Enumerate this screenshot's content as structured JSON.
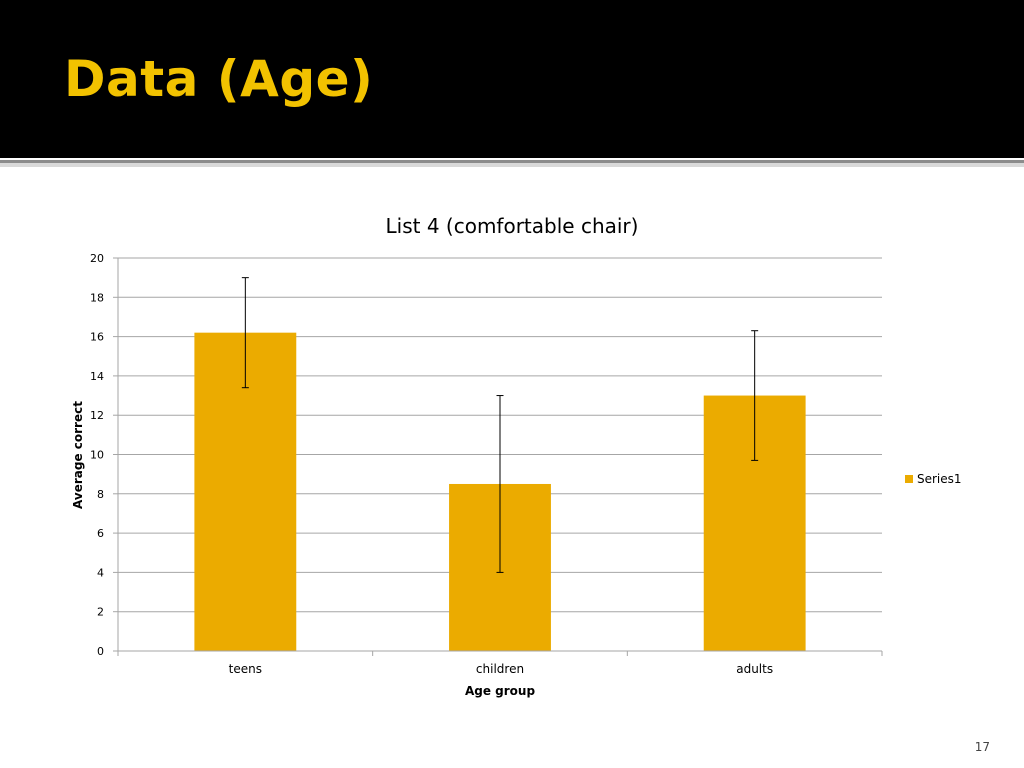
{
  "slide": {
    "title": "Data (Age)",
    "page_number": "17"
  },
  "colors": {
    "title_band": "#000000",
    "title_text": "#f2c200",
    "bar": "#ebab00",
    "gridline": "#a6a6a6",
    "axis": "#a6a6a6",
    "error_bar": "#000000"
  },
  "chart_data": {
    "type": "bar",
    "title": "List 4 (comfortable chair)",
    "xlabel": "Age group",
    "ylabel": "Average correct",
    "categories": [
      "teens",
      "children",
      "adults"
    ],
    "series": [
      {
        "name": "Series1",
        "values": [
          16.2,
          8.5,
          13.0
        ],
        "error": [
          2.8,
          4.5,
          3.3
        ]
      }
    ],
    "ylim": [
      0,
      20
    ],
    "yticks": [
      0,
      2,
      4,
      6,
      8,
      10,
      12,
      14,
      16,
      18,
      20
    ],
    "grid": true,
    "legend": "right"
  }
}
